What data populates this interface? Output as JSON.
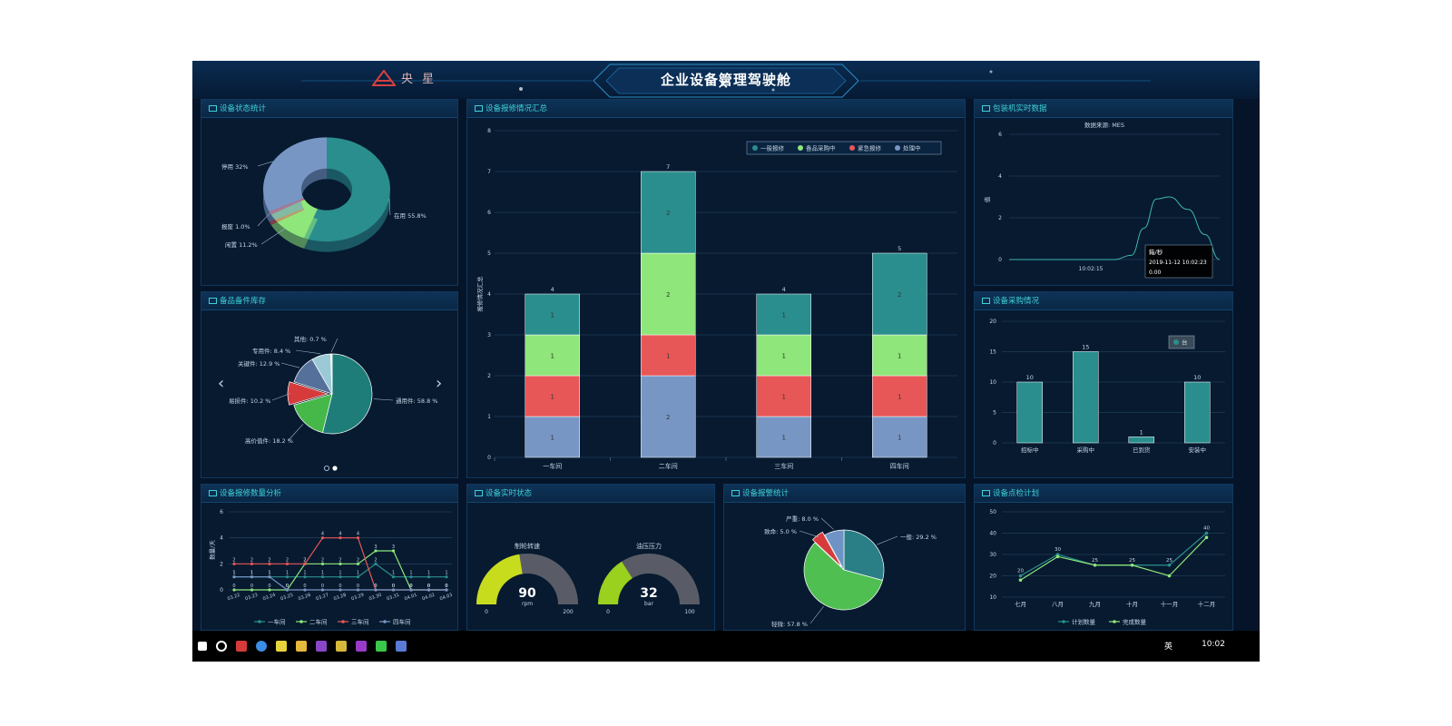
{
  "app": {
    "title": "企业设备管理驾驶舱",
    "logo_text": "央 星",
    "close_glyph": "✕"
  },
  "colors": {
    "teal": "#2a8e8e",
    "green": "#8fe67a",
    "red": "#e85757",
    "blue": "#7896c4",
    "accent": "#3fd1d6"
  },
  "panels": {
    "status": {
      "title": "设备状态统计",
      "chart_data": {
        "type": "pie",
        "slices": [
          {
            "label": "在用 55.8%",
            "value": 55.8,
            "color": "#2a8e8e"
          },
          {
            "label": "闲置 11.2%",
            "value": 11.2,
            "color": "#8fe67a"
          },
          {
            "label": "报废 1.0%",
            "value": 1.0,
            "color": "#e85757"
          },
          {
            "label": "停用 32%",
            "value": 32.0,
            "color": "#7896c4"
          }
        ]
      }
    },
    "spare": {
      "title": "备品备件库存",
      "chart_data": {
        "type": "pie",
        "slices": [
          {
            "label": "通用件: 58.8 %",
            "value": 58.8,
            "color": "#1e7d78"
          },
          {
            "label": "高价值件: 18.2 %",
            "value": 18.2,
            "color": "#46b84a"
          },
          {
            "label": "易损件: 10.2 %",
            "value": 10.2,
            "color": "#d63b3b"
          },
          {
            "label": "关键件: 12.9 %",
            "value": 12.9,
            "color": "#55709a"
          },
          {
            "label": "专用件: 8.4 %",
            "value": 8.4,
            "color": "#9cc9d6"
          },
          {
            "label": "其他: 0.7 %",
            "value": 0.7,
            "color": "#e6e6e6"
          }
        ]
      },
      "prev_glyph": "‹",
      "next_glyph": "›"
    },
    "repair_summary": {
      "title": "设备报修情况汇总",
      "chart_data": {
        "type": "bar",
        "stacked": true,
        "categories": [
          "一车间",
          "二车间",
          "三车间",
          "四车间"
        ],
        "ylabel": "报修情况汇总",
        "ylim": [
          0,
          8
        ],
        "yticks": [
          0,
          1,
          2,
          3,
          4,
          5,
          6,
          7,
          8
        ],
        "totals": [
          4,
          7,
          4,
          5
        ],
        "legend_position": "top-right",
        "series": [
          {
            "name": "处理中",
            "color": "#7896c4",
            "values": [
              1,
              2,
              1,
              1
            ]
          },
          {
            "name": "紧急报修",
            "color": "#e85757",
            "values": [
              1,
              1,
              1,
              1
            ]
          },
          {
            "name": "备品采购中",
            "color": "#8fe67a",
            "values": [
              1,
              2,
              1,
              1
            ]
          },
          {
            "name": "一般报修",
            "color": "#2a8e8e",
            "values": [
              1,
              2,
              1,
              2
            ]
          }
        ],
        "legend_order": [
          "一般报修",
          "备品采购中",
          "紧急报修",
          "处理中"
        ]
      }
    },
    "packer": {
      "title": "包装机实时数据",
      "chart_data": {
        "type": "line",
        "subtitle": "数据来源: MES",
        "ylabel": "值",
        "ylim": [
          0,
          6
        ],
        "yticks": [
          0,
          2,
          4,
          6
        ],
        "xlabel_tick": "10:02:15",
        "points": [
          [
            0,
            0
          ],
          [
            0.5,
            0
          ],
          [
            0.58,
            0.2
          ],
          [
            0.64,
            1.5
          ],
          [
            0.7,
            2.9
          ],
          [
            0.76,
            3.0
          ],
          [
            0.85,
            2.4
          ],
          [
            0.93,
            1.2
          ],
          [
            1.0,
            0
          ]
        ],
        "tooltip": {
          "title": "箱/秒",
          "time": "2019-11-12 10:02:23",
          "value": "0.00"
        }
      }
    },
    "purchase": {
      "title": "设备采购情况",
      "chart_data": {
        "type": "bar",
        "categories": [
          "招标中",
          "采购中",
          "已到货",
          "安装中"
        ],
        "values": [
          10,
          15,
          1,
          10
        ],
        "ylim": [
          0,
          20
        ],
        "yticks": [
          0,
          5,
          10,
          15,
          20
        ],
        "legend": "台",
        "color": "#2a8e8e"
      }
    },
    "repair_count": {
      "title": "设备报修数量分析",
      "chart_data": {
        "type": "line",
        "ylabel": "数量/天",
        "ylim": [
          0,
          6
        ],
        "yticks": [
          0,
          2,
          4,
          6
        ],
        "categories": [
          "03.22",
          "03.23",
          "03.24",
          "03.25",
          "03.26",
          "03.27",
          "03.28",
          "03.29",
          "03.30",
          "03.31",
          "04.01",
          "04.02",
          "04.03"
        ],
        "series": [
          {
            "name": "一车间",
            "color": "#2a8e8e",
            "values": [
              1,
              1,
              1,
              1,
              1,
              1,
              1,
              1,
              2,
              1,
              1,
              1,
              1
            ]
          },
          {
            "name": "二车间",
            "color": "#8fe67a",
            "values": [
              0,
              0,
              0,
              0,
              2,
              2,
              2,
              2,
              3,
              3,
              0,
              0,
              0
            ]
          },
          {
            "name": "三车间",
            "color": "#e85757",
            "values": [
              2,
              2,
              2,
              2,
              2,
              4,
              4,
              4,
              0,
              0,
              0,
              0,
              0
            ]
          },
          {
            "name": "四车间",
            "color": "#7896c4",
            "values": [
              1,
              1,
              1,
              0,
              0,
              0,
              0,
              0,
              0,
              0,
              0,
              0,
              0
            ]
          }
        ]
      }
    },
    "realtime": {
      "title": "设备实时状态",
      "gauges": [
        {
          "label": "制轮转速",
          "value": 90,
          "unit": "rpm",
          "min": "0",
          "max": "200",
          "max_value": 200,
          "color": "#c8dc1e"
        },
        {
          "label": "油压压力",
          "value": 32,
          "unit": "bar",
          "min": "0",
          "max": "100",
          "max_value": 100,
          "color": "#9ad01e"
        }
      ]
    },
    "alarm": {
      "title": "设备报警统计",
      "chart_data": {
        "type": "pie",
        "slices": [
          {
            "label": "一般: 29.2 %",
            "value": 29.2,
            "color": "#2a7f86"
          },
          {
            "label": "轻微: 57.8 %",
            "value": 57.8,
            "color": "#4fbf52"
          },
          {
            "label": "致命: 5.0 %",
            "value": 5.0,
            "color": "#d63b3b"
          },
          {
            "label": "严重: 8.0 %",
            "value": 8.0,
            "color": "#6f93c4"
          }
        ]
      }
    },
    "inspection": {
      "title": "设备点检计划",
      "chart_data": {
        "type": "line",
        "categories": [
          "七月",
          "八月",
          "九月",
          "十月",
          "十一月",
          "十二月"
        ],
        "ylim": [
          10,
          50
        ],
        "yticks": [
          10,
          20,
          30,
          40,
          50
        ],
        "series": [
          {
            "name": "计划数量",
            "color": "#2a8e8e",
            "values": [
              20,
              30,
              25,
              25,
              25,
              40
            ]
          },
          {
            "name": "完成数量",
            "color": "#8fe67a",
            "values": [
              18,
              29,
              25,
              25,
              20,
              38
            ]
          }
        ]
      }
    }
  },
  "taskbar": {
    "time": "10:02",
    "lang": "英"
  }
}
